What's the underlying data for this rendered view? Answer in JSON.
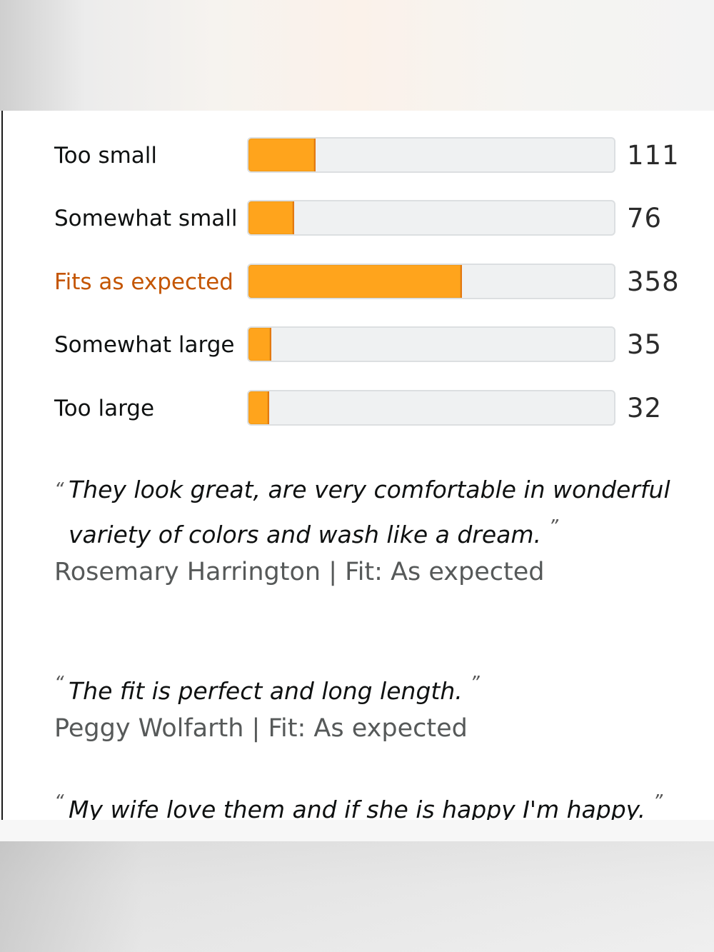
{
  "fit_breakdown": [
    {
      "label": "Too small",
      "count": "111",
      "fraction": 0.31,
      "active": false
    },
    {
      "label": "Somewhat small",
      "count": "76",
      "fraction": 0.21,
      "active": false
    },
    {
      "label": "Fits as expected",
      "count": "358",
      "fraction": 1.0,
      "active": true
    },
    {
      "label": "Somewhat large",
      "count": "35",
      "fraction": 0.1,
      "active": false
    },
    {
      "label": "Too large",
      "count": "32",
      "fraction": 0.09,
      "active": false
    }
  ],
  "reviews": [
    {
      "quote": "They look great, are very comfortable in wonderful variety of colors and wash like a dream.",
      "author": "Rosemary Harrington | Fit: As expected"
    },
    {
      "quote": "The fit is perfect and long length.",
      "author": "Peggy Wolfarth | Fit: As expected"
    },
    {
      "quote": "My wife love them and if she is happy I'm happy.",
      "author": ""
    }
  ],
  "colors": {
    "bar_fill": "#ffa41c",
    "bar_track": "#eff1f2",
    "active_label": "#c45500"
  }
}
